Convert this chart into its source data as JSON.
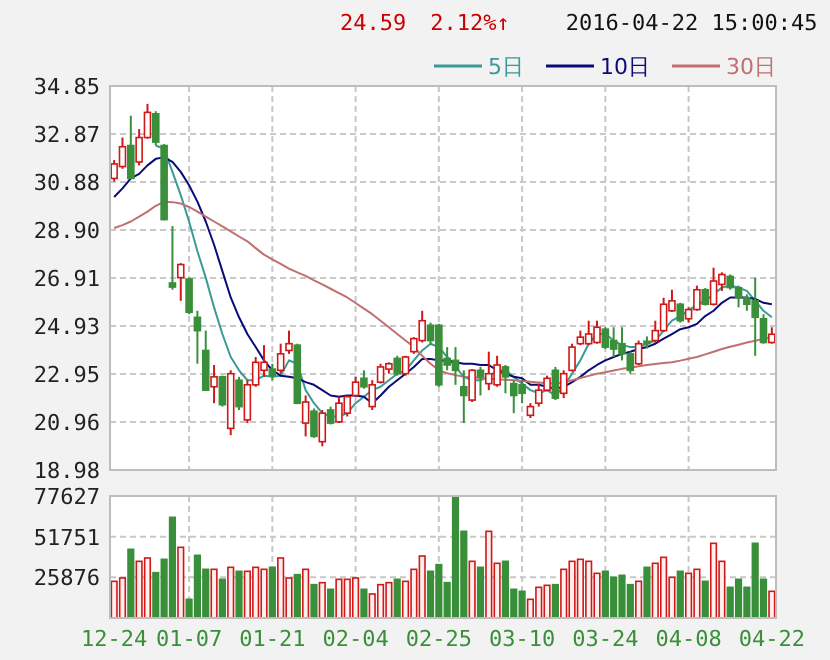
{
  "chart_data": [
    {
      "type": "candlestick",
      "annotations": [
        "24.59",
        "2.12%↑",
        "2016-04-22 15:00:45"
      ],
      "categories": [
        null,
        null,
        null,
        null,
        null,
        null,
        null,
        null,
        null,
        null,
        null,
        null,
        null,
        null,
        null,
        null,
        null,
        null,
        null,
        null,
        null,
        null,
        null,
        null,
        null,
        null,
        null,
        null,
        null,
        null,
        null,
        null,
        null,
        null,
        null,
        null,
        null,
        null,
        null,
        null,
        null,
        null,
        null,
        null,
        null,
        null,
        null,
        null,
        null,
        null,
        null,
        null,
        null,
        null,
        null,
        null,
        null,
        null,
        null,
        null,
        null,
        null,
        null,
        null,
        null,
        null,
        null,
        null,
        null,
        null,
        null,
        null,
        null,
        null,
        null,
        null,
        null,
        null,
        null,
        null
      ],
      "ohlc": [
        [
          31.03,
          31.79,
          30.9,
          31.63
        ],
        [
          31.52,
          32.72,
          31.43,
          32.34
        ],
        [
          32.39,
          33.62,
          31.0,
          31.03
        ],
        [
          31.71,
          33.07,
          31.57,
          32.72
        ],
        [
          32.72,
          34.11,
          32.67,
          33.76
        ],
        [
          33.7,
          33.81,
          32.39,
          32.53
        ],
        [
          32.39,
          32.45,
          29.3,
          29.33
        ],
        [
          26.71,
          29.06,
          26.43,
          26.54
        ],
        [
          26.93,
          27.53,
          25.97,
          27.47
        ],
        [
          26.87,
          26.93,
          25.42,
          25.5
        ],
        [
          25.29,
          25.56,
          23.37,
          24.74
        ],
        [
          23.92,
          24.74,
          22.25,
          22.28
        ],
        [
          22.42,
          23.32,
          21.74,
          22.83
        ],
        [
          22.83,
          22.88,
          21.6,
          21.68
        ],
        [
          20.7,
          23.1,
          20.42,
          22.96
        ],
        [
          22.69,
          22.83,
          21.46,
          21.6
        ],
        [
          21.05,
          22.69,
          20.92,
          22.5
        ],
        [
          22.5,
          23.65,
          22.42,
          23.43
        ],
        [
          23.1,
          24.14,
          22.83,
          23.43
        ],
        [
          23.15,
          23.37,
          22.69,
          22.88
        ],
        [
          23.1,
          24.2,
          22.96,
          23.78
        ],
        [
          23.92,
          24.74,
          23.78,
          24.2
        ],
        [
          24.14,
          24.2,
          21.7,
          21.74
        ],
        [
          20.92,
          22.06,
          20.37,
          21.79
        ],
        [
          21.41,
          21.52,
          20.31,
          20.37
        ],
        [
          20.15,
          21.46,
          19.96,
          21.33
        ],
        [
          21.46,
          21.6,
          20.86,
          20.92
        ],
        [
          20.97,
          22.01,
          20.92,
          21.74
        ],
        [
          21.33,
          22.06,
          21.19,
          22.01
        ],
        [
          22.06,
          22.83,
          22.01,
          22.61
        ],
        [
          22.77,
          23.1,
          22.34,
          22.42
        ],
        [
          21.6,
          22.69,
          21.46,
          22.5
        ],
        [
          22.61,
          23.37,
          22.55,
          23.24
        ],
        [
          23.15,
          23.43,
          22.96,
          23.37
        ],
        [
          23.59,
          23.7,
          22.88,
          22.96
        ],
        [
          22.96,
          23.7,
          22.88,
          23.65
        ],
        [
          23.87,
          24.47,
          23.78,
          24.41
        ],
        [
          24.33,
          25.56,
          24.25,
          25.15
        ],
        [
          24.96,
          25.07,
          24.14,
          24.33
        ],
        [
          24.96,
          25.02,
          22.42,
          22.5
        ],
        [
          23.59,
          24.06,
          23.1,
          23.32
        ],
        [
          23.51,
          24.06,
          22.5,
          23.1
        ],
        [
          22.42,
          23.1,
          20.92,
          22.06
        ],
        [
          21.87,
          23.15,
          21.79,
          23.1
        ],
        [
          23.1,
          23.24,
          22.06,
          22.83
        ],
        [
          22.55,
          23.87,
          22.28,
          22.96
        ],
        [
          22.5,
          23.7,
          22.42,
          23.32
        ],
        [
          23.24,
          23.32,
          22.15,
          22.83
        ],
        [
          22.55,
          22.69,
          21.33,
          22.06
        ],
        [
          22.5,
          22.69,
          21.74,
          22.15
        ],
        [
          21.24,
          21.74,
          21.13,
          21.6
        ],
        [
          21.74,
          22.55,
          21.6,
          22.28
        ],
        [
          22.28,
          22.88,
          22.23,
          22.77
        ],
        [
          23.1,
          23.24,
          21.87,
          21.95
        ],
        [
          22.15,
          23.1,
          21.95,
          22.96
        ],
        [
          23.1,
          24.2,
          23.05,
          24.06
        ],
        [
          24.2,
          24.74,
          24.14,
          24.47
        ],
        [
          24.2,
          25.15,
          24.14,
          24.6
        ],
        [
          24.25,
          25.15,
          24.2,
          24.88
        ],
        [
          24.8,
          24.88,
          23.98,
          24.06
        ],
        [
          24.33,
          24.88,
          23.65,
          23.98
        ],
        [
          24.2,
          24.88,
          23.51,
          23.78
        ],
        [
          23.78,
          23.87,
          22.96,
          23.1
        ],
        [
          23.37,
          24.33,
          23.32,
          24.2
        ],
        [
          24.3,
          24.5,
          24.0,
          24.2
        ],
        [
          24.33,
          25.15,
          24.25,
          24.74
        ],
        [
          24.74,
          26.1,
          24.69,
          25.83
        ],
        [
          25.56,
          26.43,
          25.51,
          25.97
        ],
        [
          25.83,
          25.89,
          25.07,
          25.15
        ],
        [
          25.23,
          25.7,
          25.07,
          25.61
        ],
        [
          25.61,
          26.6,
          25.56,
          26.43
        ],
        [
          26.43,
          26.5,
          25.78,
          25.83
        ],
        [
          25.83,
          27.34,
          25.78,
          26.79
        ],
        [
          26.65,
          27.15,
          26.38,
          27.06
        ],
        [
          26.98,
          27.06,
          26.43,
          26.52
        ],
        [
          26.52,
          26.6,
          25.7,
          26.1
        ],
        [
          26.1,
          26.24,
          25.56,
          25.83
        ],
        [
          25.97,
          26.93,
          23.7,
          25.29
        ],
        [
          25.23,
          25.42,
          24.2,
          24.25
        ],
        [
          24.25,
          24.88,
          24.2,
          24.59
        ]
      ],
      "series": [
        {
          "type": "line",
          "name": "5日",
          "color": "#3a9a96",
          "values": [
            null,
            null,
            null,
            null,
            null,
            32.39,
            32.25,
            31.3,
            30.34,
            29.25,
            28.02,
            26.93,
            25.7,
            24.6,
            23.65,
            23.1,
            22.69,
            22.69,
            22.88,
            22.83,
            22.88,
            23.51,
            23.37,
            22.28,
            21.74,
            21.33,
            21.19,
            21.19,
            21.33,
            21.74,
            22.01,
            22.28,
            22.42,
            22.69,
            22.96,
            23.1,
            23.51,
            23.92,
            24.2,
            24.06,
            23.65,
            23.24,
            22.83,
            22.69,
            22.69,
            22.83,
            23.1,
            23.1,
            22.83,
            22.55,
            22.28,
            22.15,
            22.28,
            22.06,
            22.42,
            22.96,
            23.51,
            24.2,
            24.6,
            24.6,
            24.33,
            24.14,
            24.06,
            24.06,
            24.2,
            24.33,
            24.74,
            25.15,
            25.34,
            25.56,
            25.83,
            25.97,
            26.24,
            26.52,
            26.6,
            26.52,
            26.38,
            25.97,
            25.56,
            25.29
          ]
        },
        {
          "type": "line",
          "name": "10日",
          "color": "#0a0a78",
          "values": [
            30.26,
            30.62,
            31.03,
            31.22,
            31.57,
            31.84,
            31.9,
            31.71,
            31.3,
            30.75,
            30.07,
            29.25,
            28.29,
            27.2,
            26.11,
            25.29,
            24.6,
            24.06,
            23.51,
            23.1,
            22.88,
            22.83,
            22.77,
            22.61,
            22.5,
            22.28,
            22.06,
            22.01,
            22.06,
            22.06,
            22.01,
            21.74,
            22.06,
            22.42,
            22.69,
            22.96,
            23.24,
            23.57,
            23.57,
            23.51,
            23.51,
            23.43,
            23.37,
            23.37,
            23.32,
            23.32,
            23.1,
            22.96,
            22.83,
            22.77,
            22.5,
            22.5,
            22.42,
            22.34,
            22.42,
            22.61,
            22.83,
            23.1,
            23.32,
            23.51,
            23.65,
            23.78,
            23.87,
            23.98,
            24.06,
            24.2,
            24.41,
            24.6,
            24.8,
            24.88,
            25.02,
            25.34,
            25.56,
            25.89,
            26.11,
            26.11,
            26.11,
            26.05,
            25.89,
            25.83
          ]
        },
        {
          "type": "line",
          "name": "30日",
          "color": "#c07070",
          "values": [
            28.98,
            29.1,
            29.25,
            29.45,
            29.66,
            29.9,
            30.07,
            30.05,
            29.99,
            29.85,
            29.66,
            29.45,
            29.25,
            29.05,
            28.84,
            28.63,
            28.43,
            28.15,
            27.88,
            27.68,
            27.5,
            27.3,
            27.15,
            27.0,
            26.82,
            26.65,
            26.47,
            26.29,
            26.11,
            25.88,
            25.65,
            25.42,
            25.15,
            24.88,
            24.6,
            24.33,
            24.06,
            23.7,
            23.37,
            23.1,
            22.98,
            22.9,
            22.83,
            22.8,
            22.78,
            22.76,
            22.73,
            22.71,
            22.69,
            22.66,
            22.63,
            22.6,
            22.57,
            22.55,
            22.6,
            22.69,
            22.78,
            22.87,
            22.96,
            23.02,
            23.09,
            23.16,
            23.21,
            23.27,
            23.32,
            23.36,
            23.4,
            23.43,
            23.5,
            23.58,
            23.65,
            23.76,
            23.87,
            23.98,
            24.07,
            24.16,
            24.25,
            24.32,
            24.4,
            24.47
          ]
        }
      ],
      "ylim": [
        18.98,
        34.85
      ],
      "yticks": [
        18.98,
        20.96,
        22.95,
        24.93,
        26.91,
        {
          "value": 28.9,
          "label": "28.90"
        },
        30.88,
        32.87,
        34.85
      ],
      "grid": true,
      "legend": "top right",
      "tick_labels": "y"
    },
    {
      "type": "bar",
      "categories": [
        "12-24",
        null,
        null,
        null,
        null,
        null,
        null,
        null,
        null,
        "01-07",
        null,
        null,
        null,
        null,
        null,
        null,
        null,
        null,
        null,
        "01-21",
        null,
        null,
        null,
        null,
        null,
        null,
        null,
        null,
        null,
        "02-04",
        null,
        null,
        null,
        null,
        null,
        null,
        null,
        null,
        null,
        "02-25",
        null,
        null,
        null,
        null,
        null,
        null,
        null,
        null,
        null,
        "03-10",
        null,
        null,
        null,
        null,
        null,
        null,
        null,
        null,
        null,
        "03-24",
        null,
        null,
        null,
        null,
        null,
        null,
        null,
        null,
        null,
        "04-08",
        null,
        null,
        null,
        null,
        null,
        null,
        null,
        null,
        null,
        "04-22"
      ],
      "values": [
        23330,
        25450,
        43690,
        36060,
        38180,
        28850,
        37330,
        64050,
        44970,
        11880,
        39880,
        30970,
        30970,
        24600,
        32240,
        29700,
        29700,
        32240,
        30970,
        32240,
        38180,
        25450,
        27570,
        30970,
        21210,
        22480,
        18240,
        24600,
        24600,
        25450,
        18240,
        15270,
        21210,
        22480,
        24600,
        23330,
        30970,
        39450,
        29700,
        33940,
        22480,
        77627,
        55150,
        36060,
        32240,
        55150,
        34790,
        36060,
        18240,
        16970,
        11880,
        19510,
        20790,
        21210,
        30970,
        36060,
        37330,
        36060,
        28420,
        29700,
        25880,
        27150,
        21210,
        23330,
        32240,
        34790,
        38600,
        25880,
        29700,
        28420,
        30970,
        23330,
        47510,
        36060,
        19510,
        24600,
        19510,
        47510,
        24600,
        16970
      ],
      "colors": [
        "#d01818",
        "#d01818",
        "#3a8f3a",
        "#d01818",
        "#d01818",
        "#3a8f3a",
        "#3a8f3a",
        "#3a8f3a",
        "#d01818",
        "#3a8f3a",
        "#3a8f3a",
        "#3a8f3a",
        "#d01818",
        "#3a8f3a",
        "#d01818",
        "#3a8f3a",
        "#d01818",
        "#d01818",
        "#d01818",
        "#3a8f3a",
        "#d01818",
        "#d01818",
        "#3a8f3a",
        "#d01818",
        "#3a8f3a",
        "#d01818",
        "#3a8f3a",
        "#d01818",
        "#d01818",
        "#d01818",
        "#3a8f3a",
        "#d01818",
        "#d01818",
        "#d01818",
        "#3a8f3a",
        "#d01818",
        "#d01818",
        "#d01818",
        "#3a8f3a",
        "#3a8f3a",
        "#3a8f3a",
        "#3a8f3a",
        "#3a8f3a",
        "#d01818",
        "#3a8f3a",
        "#d01818",
        "#d01818",
        "#3a8f3a",
        "#3a8f3a",
        "#3a8f3a",
        "#d01818",
        "#d01818",
        "#d01818",
        "#3a8f3a",
        "#d01818",
        "#d01818",
        "#d01818",
        "#d01818",
        "#d01818",
        "#3a8f3a",
        "#3a8f3a",
        "#3a8f3a",
        "#3a8f3a",
        "#d01818",
        "#3a8f3a",
        "#d01818",
        "#d01818",
        "#d01818",
        "#3a8f3a",
        "#d01818",
        "#d01818",
        "#3a8f3a",
        "#d01818",
        "#d01818",
        "#3a8f3a",
        "#3a8f3a",
        "#3a8f3a",
        "#3a8f3a",
        "#3a8f3a",
        "#d01818"
      ],
      "ylim": [
        0,
        77627
      ],
      "yticks": [
        25876,
        51751,
        77627
      ],
      "grid": true
    }
  ]
}
